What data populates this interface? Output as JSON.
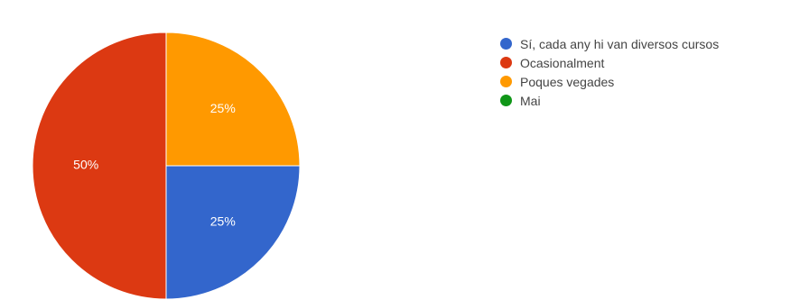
{
  "chart_data": {
    "type": "pie",
    "categories": [
      "Sí, cada any hi van diversos cursos",
      "Ocasionalment",
      "Poques vegades",
      "Mai"
    ],
    "values": [
      25,
      50,
      25,
      0
    ],
    "value_labels": [
      "25%",
      "50%",
      "25%",
      ""
    ],
    "colors": [
      "#3366cc",
      "#dc3912",
      "#ff9900",
      "#109618"
    ],
    "legend_position": "right"
  }
}
